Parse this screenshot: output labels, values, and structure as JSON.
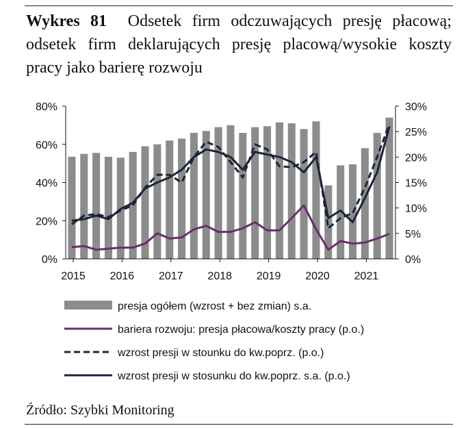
{
  "title": {
    "number": "Wykres 81",
    "text": "Odsetek firm odczuwających presję płacową; odsetek firm deklarujących presję placową/wysokie koszty pracy jako barierę rozwoju"
  },
  "source": "Źródło: Szybki Monitoring",
  "chart_data": {
    "type": "bar",
    "x_tick_labels": [
      "2015",
      "2016",
      "2017",
      "2018",
      "2019",
      "2020",
      "2021"
    ],
    "y_left": {
      "range": [
        0,
        80
      ],
      "ticks": [
        "0%",
        "20%",
        "40%",
        "60%",
        "80%"
      ]
    },
    "y_right": {
      "range": [
        0,
        30
      ],
      "ticks": [
        "0%",
        "5%",
        "10%",
        "15%",
        "20%",
        "25%",
        "30%"
      ]
    },
    "grid": false,
    "legend_position": "bottom",
    "colors": {
      "bars": "#8c8c8c",
      "barrier": "#6b2c6f",
      "dashed": "#1c2537",
      "solid": "#1c2537"
    },
    "series": [
      {
        "name": "presja ogółem (wzrost + bez zmian) s.a.",
        "axis": "left",
        "kind": "bar",
        "values": [
          53.5,
          55,
          55.5,
          53.5,
          53,
          56,
          59,
          60,
          62,
          63,
          66,
          67,
          69,
          70,
          66,
          69,
          69.5,
          71.5,
          71,
          68,
          72,
          38.5,
          49,
          49.5,
          58,
          66,
          74
        ]
      },
      {
        "name": "bariera rozwoju: presja płacowa/koszty pracy (p.o.)",
        "axis": "right",
        "kind": "line",
        "dash": false,
        "values": [
          2.3,
          2.5,
          1.8,
          2.0,
          2.2,
          2.2,
          3.0,
          5.0,
          4.0,
          4.2,
          5.8,
          6.5,
          5.3,
          5.3,
          6.0,
          7.2,
          5.6,
          5.6,
          8.0,
          10.5,
          5.8,
          1.8,
          3.5,
          3.0,
          3.2,
          4.0,
          4.9
        ]
      },
      {
        "name": "wzrost presji w stounku do kw.poprz. (p.o.)",
        "axis": "right",
        "kind": "line",
        "dash": true,
        "values": [
          6.8,
          8.5,
          8.8,
          8.2,
          9.5,
          10.5,
          14.0,
          16.5,
          16.5,
          15.0,
          20.0,
          23.0,
          22.0,
          19.0,
          16.0,
          22.5,
          21.5,
          18.2,
          18.0,
          19.0,
          21.0,
          6.0,
          8.0,
          9.0,
          14.0,
          20.0,
          26.5
        ]
      },
      {
        "name": "wzrost presji w stosunku do kw.poprz. s.a. (p.o.)",
        "axis": "right",
        "kind": "line",
        "dash": false,
        "values": [
          7.5,
          7.8,
          8.5,
          7.8,
          9.8,
          11.0,
          13.8,
          15.0,
          16.0,
          17.5,
          20.0,
          21.5,
          21.0,
          20.0,
          17.5,
          21.0,
          20.5,
          20.0,
          19.0,
          17.0,
          20.0,
          8.0,
          9.5,
          7.2,
          12.0,
          17.0,
          26.0
        ]
      }
    ]
  }
}
